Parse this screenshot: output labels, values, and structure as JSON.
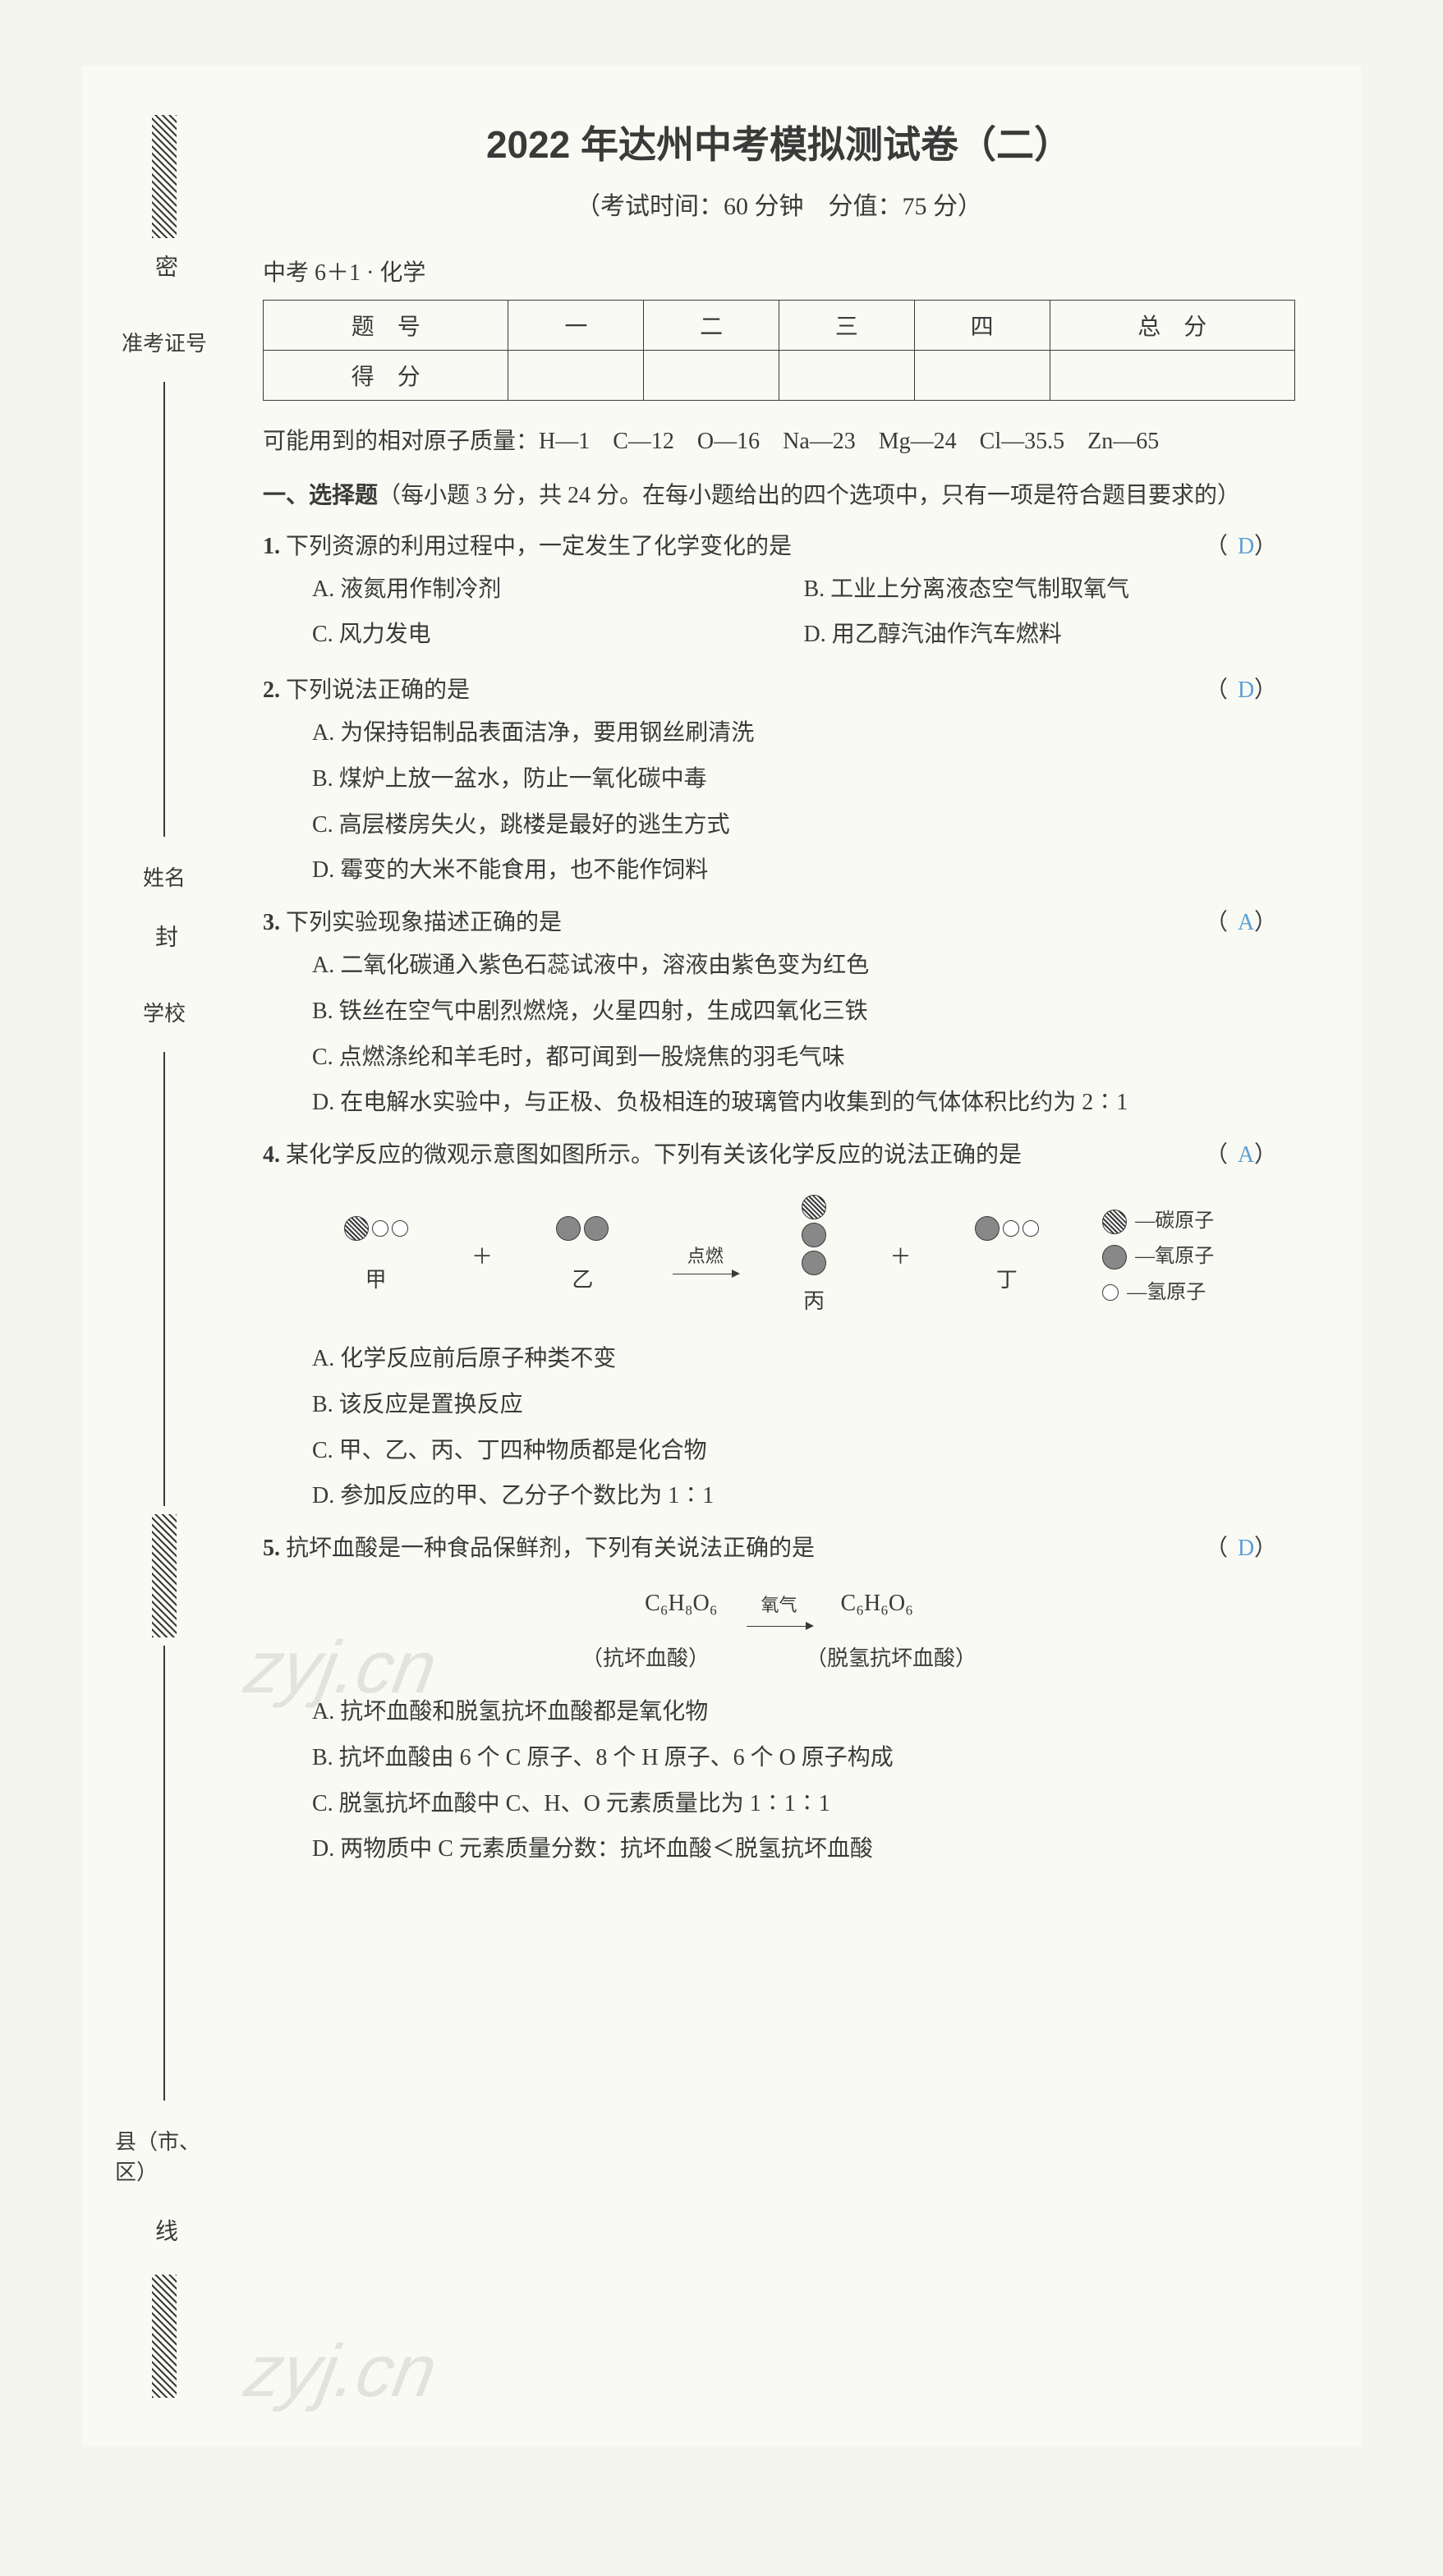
{
  "header": {
    "title": "2022 年达州中考模拟测试卷（二）",
    "subtitle": "（考试时间：60 分钟　分值：75 分）",
    "series": "中考 6＋1 · 化学"
  },
  "score_table": {
    "cols": [
      "题　号",
      "一",
      "二",
      "三",
      "四",
      "总　分"
    ],
    "row_label": "得　分"
  },
  "atomic_masses": {
    "intro": "可能用到的相对原子质量：",
    "items": "H—1　C—12　O—16　Na—23　Mg—24　Cl—35.5　Zn—65"
  },
  "section1": {
    "label": "一、选择题",
    "desc": "（每小题 3 分，共 24 分。在每小题给出的四个选项中，只有一项是符合题目要求的）"
  },
  "q1": {
    "num": "1.",
    "stem": "下列资源的利用过程中，一定发生了化学变化的是",
    "answer": "D",
    "opts": {
      "A": "A. 液氮用作制冷剂",
      "B": "B. 工业上分离液态空气制取氧气",
      "C": "C. 风力发电",
      "D": "D. 用乙醇汽油作汽车燃料"
    }
  },
  "q2": {
    "num": "2.",
    "stem": "下列说法正确的是",
    "answer": "D",
    "opts": {
      "A": "A. 为保持铝制品表面洁净，要用钢丝刷清洗",
      "B": "B. 煤炉上放一盆水，防止一氧化碳中毒",
      "C": "C. 高层楼房失火，跳楼是最好的逃生方式",
      "D": "D. 霉变的大米不能食用，也不能作饲料"
    }
  },
  "q3": {
    "num": "3.",
    "stem": "下列实验现象描述正确的是",
    "answer": "A",
    "opts": {
      "A": "A. 二氧化碳通入紫色石蕊试液中，溶液由紫色变为红色",
      "B": "B. 铁丝在空气中剧烈燃烧，火星四射，生成四氧化三铁",
      "C": "C. 点燃涤纶和羊毛时，都可闻到一股烧焦的羽毛气味",
      "D": "D. 在电解水实验中，与正极、负极相连的玻璃管内收集到的气体体积比约为 2∶1"
    }
  },
  "q4": {
    "num": "4.",
    "stem": "某化学反应的微观示意图如图所示。下列有关该化学反应的说法正确的是",
    "answer": "A",
    "labels": {
      "jia": "甲",
      "yi": "乙",
      "bing": "丙",
      "ding": "丁"
    },
    "arrow": "点燃",
    "legend": {
      "c": "—碳原子",
      "o": "—氧原子",
      "h": "—氢原子"
    },
    "opts": {
      "A": "A. 化学反应前后原子种类不变",
      "B": "B. 该反应是置换反应",
      "C": "C. 甲、乙、丙、丁四种物质都是化合物",
      "D": "D. 参加反应的甲、乙分子个数比为 1∶1"
    }
  },
  "q5": {
    "num": "5.",
    "stem": "抗坏血酸是一种食品保鲜剂，下列有关说法正确的是",
    "answer": "D",
    "eq_left": "C₆H₈O₆",
    "eq_cond": "氧气",
    "eq_right": "C₆H₆O₆",
    "note_left": "（抗坏血酸）",
    "note_right": "（脱氢抗坏血酸）",
    "opts": {
      "A": "A. 抗坏血酸和脱氢抗坏血酸都是氧化物",
      "B": "B. 抗坏血酸由 6 个 C 原子、8 个 H 原子、6 个 O 原子构成",
      "C": "C. 脱氢抗坏血酸中 C、H、O 元素质量比为 1∶1∶1",
      "D": "D. 两物质中 C 元素质量分数：抗坏血酸＜脱氢抗坏血酸"
    }
  },
  "binding": {
    "mi": "密",
    "feng": "封",
    "xian": "线",
    "field1": "准考证号",
    "field2": "姓名",
    "field3": "学校",
    "field4": "县（市、区）"
  },
  "watermark": "zyj.cn"
}
